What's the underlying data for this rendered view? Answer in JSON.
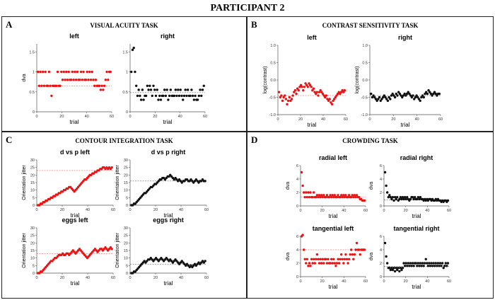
{
  "figure_title": "PARTICIPANT 2",
  "colors": {
    "left": "#ee1111",
    "right": "#111111"
  },
  "panels": {
    "a": {
      "label": "A",
      "title": "VISUAL ACUITY TASK"
    },
    "b": {
      "label": "B",
      "title": "CONTRAST SENSITIVITY TASK"
    },
    "c": {
      "label": "C",
      "title": "CONTOUR INTEGRATION TASK"
    },
    "d": {
      "label": "D",
      "title": "CROWDING TASK"
    }
  },
  "chart_data": [
    {
      "id": "va-left",
      "type": "scatter",
      "title": "left",
      "xlabel": "trial",
      "ylabel": "dva",
      "color": "left",
      "xlim": [
        0,
        60
      ],
      "ylim": [
        0,
        1.7
      ],
      "xticks": [
        0,
        20,
        40,
        60
      ],
      "yticks": [
        0,
        0.5,
        1,
        1.5
      ],
      "ref_line": 0.65,
      "y": [
        1,
        0.65,
        1,
        0.65,
        1,
        0.65,
        1,
        0.65,
        0.65,
        1,
        0.65,
        0.4,
        0.65,
        0.65,
        0.65,
        0.65,
        1,
        0.65,
        0.65,
        1,
        0.8,
        1,
        0.8,
        1,
        0.8,
        1,
        0.8,
        0.8,
        1,
        0.8,
        1,
        0.8,
        1,
        0.8,
        0.8,
        1,
        0.8,
        1,
        0.8,
        0.8,
        1,
        0.8,
        1,
        0.8,
        1,
        0.8,
        0.65,
        0.8,
        0.65,
        0.65,
        0.65,
        0.55,
        0.65,
        0.55,
        0.65,
        0.8,
        1,
        0.8,
        1,
        1
      ]
    },
    {
      "id": "va-right",
      "type": "scatter",
      "title": "right",
      "xlabel": "trial",
      "ylabel": "",
      "color": "right",
      "xlim": [
        0,
        60
      ],
      "ylim": [
        0,
        1.7
      ],
      "xticks": [
        0,
        20,
        40,
        60
      ],
      "yticks": [
        0,
        0.5,
        1,
        1.5
      ],
      "ref_line": 0.48,
      "y": [
        1,
        1.55,
        1.6,
        1,
        0.65,
        0.4,
        0.55,
        0.4,
        0.3,
        0.55,
        0.3,
        0.4,
        0.4,
        0.65,
        0.55,
        0.65,
        0.55,
        0.4,
        0.65,
        0.55,
        0.4,
        0.55,
        0.3,
        0.4,
        0.3,
        0.4,
        0.4,
        0.55,
        0.4,
        0.55,
        0.3,
        0.4,
        0.55,
        0.4,
        0.4,
        0.4,
        0.55,
        0.4,
        0.55,
        0.4,
        0.55,
        0.4,
        0.3,
        0.4,
        0.55,
        0.4,
        0.55,
        0.4,
        0.4,
        0.55,
        0.4,
        0.3,
        0.4,
        0.3,
        0.3,
        0.4,
        0.55,
        0.4,
        0.55,
        0.65
      ]
    },
    {
      "id": "cs-left",
      "type": "scatter",
      "title": "left",
      "xlabel": "trial",
      "ylabel": "log(contrast)",
      "color": "left",
      "xlim": [
        0,
        60
      ],
      "ylim": [
        -1,
        1
      ],
      "xticks": [
        0,
        20,
        40,
        60
      ],
      "yticks": [
        -1,
        -0.5,
        0,
        0.5,
        1
      ],
      "ytick_labels": [
        "-1.0",
        "-0.5",
        "0.0",
        "0.5",
        "1.0"
      ],
      "ref_line": -0.45,
      "y": [
        -0.35,
        -0.5,
        -0.45,
        -0.6,
        -0.5,
        -0.45,
        -0.55,
        -0.7,
        -0.6,
        -0.5,
        -0.6,
        -0.55,
        -0.45,
        -0.35,
        -0.3,
        -0.4,
        -0.25,
        -0.3,
        -0.2,
        -0.15,
        -0.2,
        -0.3,
        -0.2,
        -0.1,
        -0.15,
        -0.2,
        -0.1,
        -0.15,
        -0.2,
        -0.3,
        -0.25,
        -0.35,
        -0.4,
        -0.35,
        -0.45,
        -0.35,
        -0.3,
        -0.35,
        -0.4,
        -0.45,
        -0.5,
        -0.45,
        -0.55,
        -0.6,
        -0.55,
        -0.65,
        -0.7,
        -0.6,
        -0.55,
        -0.5,
        -0.45,
        -0.4,
        -0.35,
        -0.4,
        -0.35,
        -0.3,
        -0.35,
        -0.3
      ]
    },
    {
      "id": "cs-right",
      "type": "scatter",
      "title": "right",
      "xlabel": "trial",
      "ylabel": "log(contrast)",
      "color": "right",
      "xlim": [
        0,
        60
      ],
      "ylim": [
        -1,
        1
      ],
      "xticks": [
        0,
        20,
        40,
        60
      ],
      "yticks": [
        -1,
        -0.5,
        0,
        0.5,
        1
      ],
      "ytick_labels": [
        "-1.0",
        "-0.5",
        "0.0",
        "0.5",
        "1.0"
      ],
      "ref_line": -0.45,
      "y": [
        -0.4,
        -0.5,
        -0.45,
        -0.5,
        -0.55,
        -0.6,
        -0.55,
        -0.5,
        -0.6,
        -0.55,
        -0.5,
        -0.45,
        -0.5,
        -0.55,
        -0.6,
        -0.5,
        -0.55,
        -0.45,
        -0.4,
        -0.45,
        -0.5,
        -0.4,
        -0.45,
        -0.35,
        -0.4,
        -0.45,
        -0.5,
        -0.45,
        -0.4,
        -0.45,
        -0.4,
        -0.35,
        -0.4,
        -0.45,
        -0.5,
        -0.45,
        -0.55,
        -0.5,
        -0.45,
        -0.5,
        -0.55,
        -0.6,
        -0.5,
        -0.45,
        -0.5,
        -0.4,
        -0.35,
        -0.4,
        -0.3,
        -0.35,
        -0.4,
        -0.45,
        -0.4,
        -0.35,
        -0.4,
        -0.45,
        -0.4,
        -0.4
      ]
    },
    {
      "id": "ci-dp-left",
      "type": "scatter",
      "title": "d vs p left",
      "xlabel": "trial",
      "ylabel": "Orientation jitter",
      "color": "left",
      "xlim": [
        0,
        60
      ],
      "ylim": [
        0,
        30
      ],
      "xticks": [
        0,
        20,
        40,
        60
      ],
      "yticks": [
        0,
        5,
        10,
        15,
        20,
        25,
        30
      ],
      "ref_line": 23,
      "y": [
        0,
        0,
        1,
        1,
        2,
        2,
        3,
        3,
        4,
        4,
        5,
        5,
        6,
        6,
        7,
        7,
        8,
        8,
        9,
        9,
        10,
        10,
        11,
        11,
        12,
        12,
        11,
        10,
        9,
        10,
        11,
        12,
        13,
        14,
        15,
        16,
        17,
        17,
        18,
        19,
        20,
        20,
        21,
        21,
        22,
        22,
        23,
        23,
        24,
        24,
        25,
        25,
        24,
        25,
        24,
        25,
        24,
        25
      ]
    },
    {
      "id": "ci-dp-right",
      "type": "scatter",
      "title": "d vs p right",
      "xlabel": "trial",
      "ylabel": "Orientation jitter",
      "color": "right",
      "xlim": [
        0,
        60
      ],
      "ylim": [
        0,
        30
      ],
      "xticks": [
        0,
        20,
        40,
        60
      ],
      "yticks": [
        0,
        5,
        10,
        15,
        20,
        25,
        30
      ],
      "ref_line": 16,
      "y": [
        0,
        0,
        1,
        1,
        2,
        3,
        4,
        5,
        6,
        7,
        8,
        8,
        9,
        10,
        11,
        12,
        12,
        13,
        14,
        14,
        15,
        16,
        17,
        17,
        18,
        18,
        17,
        18,
        19,
        19,
        20,
        19,
        18,
        17,
        18,
        17,
        16,
        17,
        16,
        15,
        16,
        16,
        17,
        17,
        16,
        16,
        17,
        16,
        15,
        16,
        17,
        16,
        15,
        16,
        16,
        17,
        16,
        16
      ]
    },
    {
      "id": "ci-eggs-left",
      "type": "scatter",
      "title": "eggs left",
      "xlabel": "trial",
      "ylabel": "Orientation jitter",
      "color": "left",
      "xlim": [
        0,
        60
      ],
      "ylim": [
        0,
        30
      ],
      "xticks": [
        0,
        20,
        40,
        60
      ],
      "yticks": [
        0,
        5,
        10,
        15,
        20,
        25,
        30
      ],
      "ref_line": 13,
      "y": [
        0,
        0,
        1,
        1,
        2,
        3,
        4,
        5,
        6,
        7,
        8,
        8,
        9,
        10,
        10,
        11,
        12,
        12,
        12,
        13,
        12,
        12,
        13,
        13,
        12,
        13,
        14,
        15,
        14,
        13,
        14,
        15,
        16,
        15,
        14,
        13,
        12,
        11,
        10,
        11,
        12,
        13,
        14,
        15,
        16,
        15,
        14,
        15,
        16,
        16,
        15,
        16,
        17,
        16,
        15,
        16,
        17,
        16
      ]
    },
    {
      "id": "ci-eggs-right",
      "type": "scatter",
      "title": "eggs right",
      "xlabel": "trial",
      "ylabel": "Orientation jitter",
      "color": "right",
      "xlim": [
        0,
        60
      ],
      "ylim": [
        0,
        30
      ],
      "xticks": [
        0,
        20,
        40,
        60
      ],
      "yticks": [
        0,
        5,
        10,
        15,
        20,
        25,
        30
      ],
      "ref_line": 6,
      "y": [
        0,
        0,
        1,
        1,
        2,
        3,
        4,
        5,
        6,
        7,
        8,
        7,
        8,
        9,
        9,
        10,
        9,
        8,
        9,
        10,
        9,
        8,
        9,
        10,
        9,
        8,
        9,
        10,
        9,
        8,
        9,
        8,
        7,
        8,
        9,
        8,
        7,
        6,
        7,
        8,
        7,
        6,
        5,
        6,
        5,
        4,
        5,
        4,
        5,
        6,
        5,
        6,
        7,
        6,
        7,
        8,
        7,
        8
      ]
    },
    {
      "id": "cr-radial-left",
      "type": "scatter",
      "title": "radial left",
      "xlabel": "trial",
      "ylabel": "dva",
      "color": "left",
      "xlim": [
        0,
        60
      ],
      "ylim": [
        0,
        6
      ],
      "xticks": [
        0,
        20,
        40,
        60
      ],
      "yticks": [
        0,
        2,
        4,
        6
      ],
      "ref_line": 1.35,
      "y": [
        5,
        3,
        2,
        1.3,
        2,
        1.3,
        2,
        1.3,
        2,
        1.3,
        1.3,
        2,
        1.3,
        1.3,
        1.6,
        1.3,
        1.6,
        1.3,
        1.6,
        1.3,
        1.6,
        1.3,
        1.3,
        1.6,
        1.3,
        1.3,
        1.6,
        1.3,
        1.6,
        1.3,
        1.6,
        1.3,
        1.3,
        1.6,
        1.3,
        1.3,
        1.6,
        1.3,
        1.6,
        1.3,
        1.6,
        1.3,
        1.3,
        1.6,
        1.3,
        1.3,
        1.6,
        1.3,
        1.6,
        1.3,
        1.6,
        1.3,
        1.3,
        1,
        1,
        0.8,
        0.8,
        0.8
      ]
    },
    {
      "id": "cr-radial-right",
      "type": "scatter",
      "title": "radial right",
      "xlabel": "trial",
      "ylabel": "dva",
      "color": "right",
      "xlim": [
        0,
        60
      ],
      "ylim": [
        0,
        6
      ],
      "xticks": [
        0,
        20,
        40,
        60
      ],
      "yticks": [
        0,
        2,
        4,
        6
      ],
      "ref_line": 0.9,
      "y": [
        5,
        3,
        2,
        1.3,
        1.6,
        1.3,
        1,
        1.3,
        0.8,
        1.3,
        1,
        1.3,
        0.8,
        1,
        1.3,
        1,
        1.3,
        1,
        1.3,
        1,
        1.3,
        1,
        0.8,
        1,
        1.3,
        1.3,
        1,
        1.3,
        1,
        1,
        1.3,
        1,
        1.3,
        1,
        1,
        0.8,
        1,
        0.8,
        1,
        0.8,
        1,
        1,
        0.8,
        1,
        0.8,
        0.8,
        1,
        0.8,
        1,
        0.8,
        0.8,
        0.6,
        0.8,
        0.6,
        0.8,
        0.8,
        0.6,
        0.8
      ]
    },
    {
      "id": "cr-tangential-left",
      "type": "scatter",
      "title": "tangential left",
      "xlabel": "trial",
      "ylabel": "dva",
      "color": "left",
      "xlim": [
        0,
        60
      ],
      "ylim": [
        0,
        6
      ],
      "xticks": [
        0,
        20,
        40,
        60
      ],
      "yticks": [
        0,
        2,
        4,
        6
      ],
      "ref_line": 4,
      "y": [
        6,
        6.2,
        4,
        2.6,
        2,
        2.6,
        1.6,
        2,
        1.6,
        2.6,
        2,
        2.6,
        2,
        2.6,
        3.3,
        2.6,
        2,
        2.6,
        2,
        2.6,
        2,
        2.6,
        2.6,
        2,
        2.6,
        2,
        2,
        2.6,
        2,
        2.6,
        2,
        1.6,
        2,
        2.6,
        2,
        2.6,
        3.3,
        2.6,
        2,
        2.6,
        3.3,
        2.6,
        2,
        2.6,
        3.3,
        4,
        3.3,
        2.6,
        3.3,
        4,
        5,
        4,
        4,
        3.3,
        4,
        4,
        4,
        4
      ]
    },
    {
      "id": "cr-tangential-right",
      "type": "scatter",
      "title": "tangential right",
      "xlabel": "trial",
      "ylabel": "dva",
      "color": "right",
      "xlim": [
        0,
        60
      ],
      "ylim": [
        0,
        6
      ],
      "xticks": [
        0,
        20,
        40,
        60
      ],
      "yticks": [
        0,
        2,
        4,
        6
      ],
      "ref_line": 1.5,
      "y": [
        5,
        3,
        2,
        1.3,
        1.3,
        1,
        1.3,
        1,
        1.3,
        0.8,
        1.3,
        1,
        1.3,
        0.8,
        1.3,
        1,
        1.3,
        2,
        1.6,
        2,
        1.6,
        2,
        1.6,
        2,
        1.6,
        2,
        1.6,
        2,
        2,
        1.6,
        2,
        1.6,
        2,
        1.6,
        2,
        1.6,
        2,
        2.6,
        2,
        1.6,
        2,
        1.6,
        2,
        1.6,
        2,
        1.6,
        2,
        1.6,
        2,
        1.6,
        2,
        1.6,
        2,
        1.3,
        1.6,
        2,
        1.6,
        2
      ]
    }
  ]
}
